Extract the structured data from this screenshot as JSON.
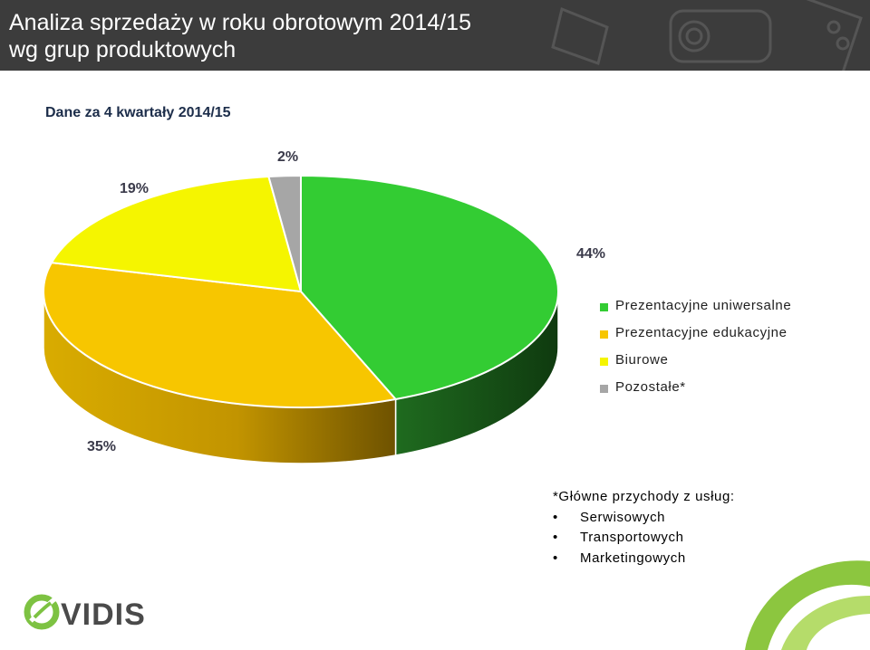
{
  "header": {
    "title_line1": "Analiza sprzedaży w roku obrotowym 2014/15",
    "title_line2": "wg grup produktowych"
  },
  "subtitle": "Dane za 4 kwartały 2014/15",
  "chart_data": {
    "type": "pie",
    "slices": [
      {
        "name": "Prezentacyjne uniwersalne",
        "value": 44,
        "label": "44%",
        "color": "#33cc33",
        "side_color": "#1a5c1a"
      },
      {
        "name": "Prezentacyjne edukacyjne",
        "value": 35,
        "label": "35%",
        "color": "#f7c600",
        "side_color": "#8f6e00"
      },
      {
        "name": "Biurowe",
        "value": 19,
        "label": "19%",
        "color": "#f5f500",
        "side_color": "#8a8a00"
      },
      {
        "name": "Pozostałe*",
        "value": 2,
        "label": "2%",
        "color": "#a6a6a6",
        "side_color": "#5a5a5a"
      }
    ],
    "legend_position": "right",
    "style": "3d"
  },
  "note": {
    "title": "*Główne przychody z usług:",
    "bullet": "•",
    "items": [
      "Serwisowych",
      "Transportowych",
      "Marketingowych"
    ]
  },
  "logo": {
    "text": "VIDIS",
    "icon": "vidis-logo-icon",
    "color": "#7dc242"
  },
  "colors": {
    "header_bg": "#3c3c3c",
    "accent_green": "#7dc242"
  }
}
